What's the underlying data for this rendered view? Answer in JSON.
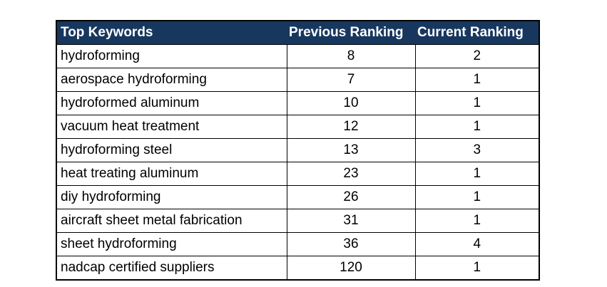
{
  "table": {
    "headers": [
      "Top Keywords",
      "Previous Ranking",
      "Current Ranking"
    ],
    "rows": [
      {
        "keyword": "hydroforming",
        "previous": "8",
        "current": "2"
      },
      {
        "keyword": "aerospace hydroforming",
        "previous": "7",
        "current": "1"
      },
      {
        "keyword": "hydroformed aluminum",
        "previous": "10",
        "current": "1"
      },
      {
        "keyword": "vacuum heat treatment",
        "previous": "12",
        "current": "1"
      },
      {
        "keyword": "hydroforming steel",
        "previous": "13",
        "current": "3"
      },
      {
        "keyword": "heat treating aluminum",
        "previous": "23",
        "current": "1"
      },
      {
        "keyword": "diy hydroforming",
        "previous": "26",
        "current": "1"
      },
      {
        "keyword": "aircraft sheet metal fabrication",
        "previous": "31",
        "current": "1"
      },
      {
        "keyword": "sheet hydroforming",
        "previous": "36",
        "current": "4"
      },
      {
        "keyword": "nadcap certified suppliers",
        "previous": "120",
        "current": "1"
      }
    ]
  },
  "colors": {
    "header_background": "#17375e",
    "header_text": "#ffffff",
    "border": "#000000"
  }
}
